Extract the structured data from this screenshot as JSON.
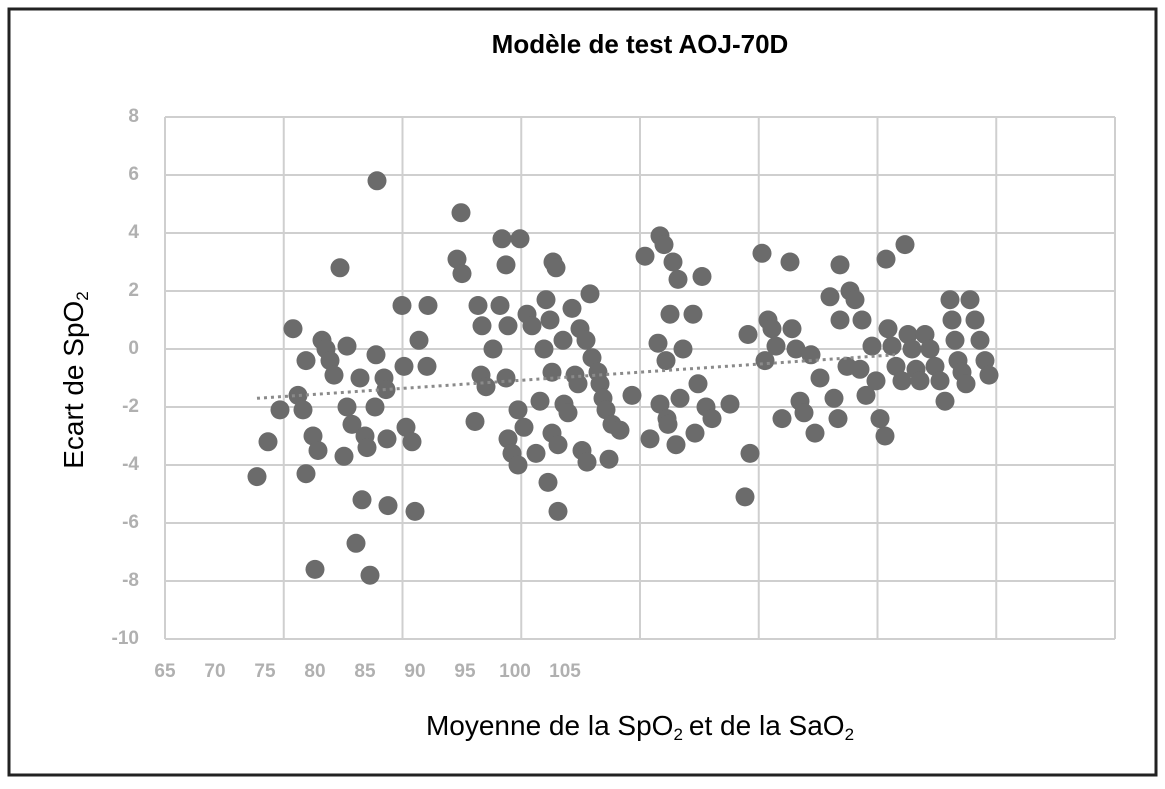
{
  "chart_data": {
    "type": "scatter",
    "title": "Modèle de test AOJ-70D",
    "ylabel": [
      "Ecart de SpO",
      "2"
    ],
    "xlabel": [
      "Moyenne de la  SpO",
      "2",
      "et de la SaO",
      "2"
    ],
    "xlim": [
      65,
      160
    ],
    "xticks": [
      65,
      70,
      75,
      80,
      85,
      90,
      95,
      100,
      105
    ],
    "ylim": [
      -10,
      8
    ],
    "yticks": [
      -10,
      -8,
      -6,
      -4,
      -2,
      0,
      2,
      4,
      6,
      8
    ],
    "grid": true,
    "series": [
      {
        "color": "#6b6b6b",
        "x": [
          74.2,
          75.3,
          76.5,
          77.8,
          78.3,
          78.8,
          79.1,
          79.1,
          79.8,
          80.3,
          80.0,
          80.7,
          81.1,
          81.5,
          81.9,
          82.5,
          83.2,
          83.2,
          83.7,
          82.9,
          84.1,
          84.5,
          84.7,
          85.0,
          85.2,
          85.5,
          86.0,
          86.1,
          86.2,
          86.9,
          87.1,
          87.2,
          87.3,
          88.7,
          88.9,
          89.1,
          89.7,
          90.0,
          90.4,
          91.3,
          91.2,
          94.6,
          94.2,
          94.7,
          96.0,
          96.3,
          96.7,
          96.6,
          97.1,
          97.8,
          98.5,
          98.7,
          99.1,
          99.1,
          99.3,
          99.3,
          99.7,
          100.3,
          100.5,
          100.3,
          100.9,
          101.2,
          101.7,
          102.1,
          102.5,
          102.9,
          103.3,
          103.1,
          103.5,
          103.7,
          103.7,
          103.8,
          104.1,
          104.3,
          104.3,
          104.8,
          104.9,
          105.3,
          105.7,
          106.0,
          106.3,
          106.5,
          106.7,
          107.1,
          107.2,
          107.5,
          107.7,
          108.3,
          108.5,
          108.8,
          109.1,
          109.4,
          109.7,
          110.5,
          111.7,
          113.0,
          113.5,
          114.3,
          114.5,
          114.5,
          114.9,
          115.2,
          115.3,
          115.1,
          115.5,
          115.8,
          116.1,
          116.3,
          116.5,
          116.8,
          117.8,
          118.0,
          118.3,
          118.7,
          119.1,
          119.7,
          121.5,
          123.0,
          123.3,
          123.5,
          124.7,
          125.0,
          125.3,
          125.7,
          126.1,
          126.7,
          127.5,
          127.7,
          128.1,
          128.5,
          128.9,
          129.6,
          130.0,
          130.5,
          131.5,
          131.9,
          132.3,
          132.5,
          132.5,
          133.2,
          133.5,
          134.0,
          134.5,
          134.7,
          135.1,
          135.7,
          136.1,
          136.5,
          137.0,
          137.1,
          137.3,
          137.7,
          138.1,
          138.7,
          139.0,
          139.3,
          139.7,
          140.1,
          140.5,
          141.0,
          141.5,
          142.0,
          142.5,
          143.0,
          143.5,
          143.7,
          144.0,
          144.3,
          144.7,
          145.1,
          145.5,
          146.0,
          146.5,
          147.0,
          147.4
        ],
        "values": [
          -4.4,
          -3.2,
          -2.1,
          0.7,
          -1.6,
          -2.1,
          -0.4,
          -4.3,
          -3.0,
          -3.5,
          -7.6,
          0.3,
          0.0,
          -0.4,
          -0.9,
          2.8,
          0.1,
          -2.0,
          -2.6,
          -3.7,
          -6.7,
          -1.0,
          -5.2,
          -3.0,
          -3.4,
          -7.8,
          -2.0,
          -0.2,
          5.8,
          -1.0,
          -1.4,
          -3.1,
          -5.4,
          1.5,
          -0.6,
          -2.7,
          -3.2,
          -5.6,
          0.3,
          1.5,
          -0.6,
          4.7,
          3.1,
          2.6,
          -2.5,
          1.5,
          0.8,
          -0.9,
          -1.3,
          0.0,
          1.5,
          3.8,
          2.9,
          -1.0,
          0.8,
          -3.1,
          -3.6,
          -4.0,
          3.8,
          -2.1,
          -2.7,
          1.2,
          0.8,
          -3.6,
          -1.8,
          0.0,
          -4.6,
          1.7,
          1.0,
          -0.8,
          -2.9,
          3.0,
          2.8,
          -3.3,
          -5.6,
          0.3,
          -1.9,
          -2.2,
          1.4,
          -0.9,
          -1.2,
          0.7,
          -3.5,
          0.3,
          -3.9,
          1.9,
          -0.3,
          -0.8,
          -1.2,
          -1.7,
          -2.1,
          -3.8,
          -2.6,
          -2.8,
          -1.6,
          3.2,
          -3.1,
          0.2,
          3.9,
          -1.9,
          3.6,
          -2.4,
          -2.6,
          -0.4,
          1.2,
          3.0,
          -3.3,
          2.4,
          -1.7,
          0.0,
          1.2,
          -2.9,
          -1.2,
          2.5,
          -2.0,
          -2.4,
          -1.9,
          -5.1,
          0.5,
          -3.6,
          3.3,
          -0.4,
          1.0,
          0.7,
          0.1,
          -2.4,
          3.0,
          0.7,
          0.0,
          -1.8,
          -2.2,
          -0.2,
          -2.9,
          -1.0,
          1.8,
          -1.7,
          -2.4,
          2.9,
          1.0,
          -0.6,
          2.0,
          1.7,
          -0.7,
          1.0,
          -1.6,
          0.1,
          -1.1,
          -2.4,
          -3.0,
          3.1,
          0.7,
          0.1,
          -0.6,
          -1.1,
          3.6,
          0.5,
          0.0,
          -0.7,
          -1.1,
          0.5,
          0.0,
          -0.6,
          -1.1,
          -1.8,
          1.7,
          1.0,
          0.3,
          -0.4,
          -0.8,
          -1.2,
          1.7,
          1.0,
          0.3,
          -0.4,
          -0.9
        ]
      }
    ],
    "trendline": {
      "color": "#8a8a8a",
      "x": [
        74.2,
        138
      ],
      "y": [
        -1.7,
        -0.2
      ]
    }
  }
}
